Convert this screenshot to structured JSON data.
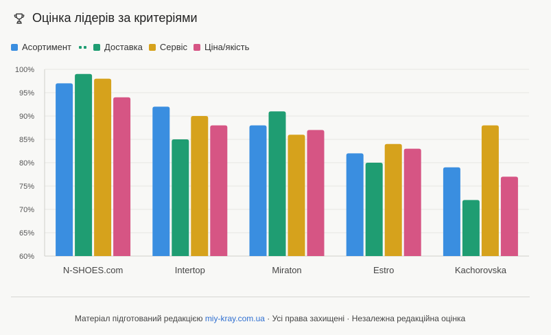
{
  "header": {
    "title": "Оцінка лідерів за критеріями",
    "icon": "trophy-icon"
  },
  "legend": {
    "separator_marker": "dashed"
  },
  "footer": {
    "prefix": "Матеріал підготований редакцією",
    "link_text": "miy-kray.com.ua",
    "suffix": " · Усі права захищені · Незалежна редакційна оцінка",
    "link_color": "#2f6fd0"
  },
  "chart_data": {
    "type": "bar",
    "title": "Оцінка лідерів за критеріями",
    "categories": [
      "N-SHOES.com",
      "Intertop",
      "Miraton",
      "Estro",
      "Kachorovska"
    ],
    "series": [
      {
        "name": "Асортимент",
        "color": "#3a8ee0",
        "values": [
          97,
          92,
          88,
          82,
          79
        ]
      },
      {
        "name": "Доставка",
        "color": "#1f9d72",
        "values": [
          99,
          85,
          91,
          80,
          72
        ]
      },
      {
        "name": "Сервіс",
        "color": "#d6a21c",
        "values": [
          98,
          90,
          86,
          84,
          88
        ]
      },
      {
        "name": "Ціна/якість",
        "color": "#d65584",
        "values": [
          94,
          88,
          87,
          83,
          77
        ]
      }
    ],
    "ylim": [
      60,
      100
    ],
    "yticks": [
      60,
      65,
      70,
      75,
      80,
      85,
      90,
      95,
      100
    ],
    "ytick_format": "%",
    "xlabel": "",
    "ylabel": "",
    "grid": true,
    "legend_position": "top-left"
  }
}
